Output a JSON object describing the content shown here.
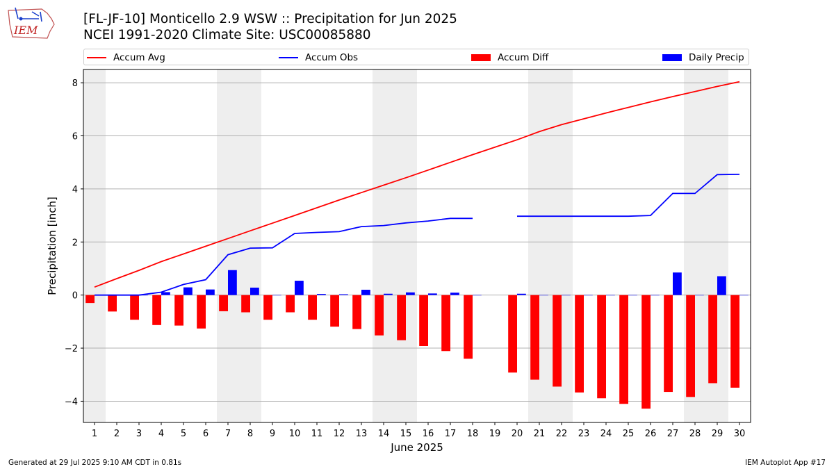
{
  "header": {
    "logo_text": "IEM",
    "title_line1": "[FL-JF-10] Monticello 2.9 WSW :: Precipitation for Jun 2025",
    "title_line2": "NCEI 1991-2020 Climate Site: USC00085880"
  },
  "legend": [
    {
      "label": "Accum Avg",
      "kind": "line",
      "color": "#ff0000"
    },
    {
      "label": "Accum Obs",
      "kind": "line",
      "color": "#0000ff"
    },
    {
      "label": "Accum Diff",
      "kind": "bar",
      "color": "#ff0000"
    },
    {
      "label": "Daily Precip",
      "kind": "bar",
      "color": "#0000ff"
    }
  ],
  "footer": {
    "left": "Generated at 29 Jul 2025 9:10 AM CDT in 0.81s",
    "right": "IEM Autoplot App #17"
  },
  "chart_data": {
    "type": "bar",
    "xlabel": "June 2025",
    "ylabel": "Precipitation [inch]",
    "xlim": [
      0.5,
      30.5
    ],
    "ylim": [
      -4.8,
      8.5
    ],
    "yticks": [
      -4,
      -2,
      0,
      2,
      4,
      6,
      8
    ],
    "x": [
      1,
      2,
      3,
      4,
      5,
      6,
      7,
      8,
      9,
      10,
      11,
      12,
      13,
      14,
      15,
      16,
      17,
      18,
      19,
      20,
      21,
      22,
      23,
      24,
      25,
      26,
      27,
      28,
      29,
      30
    ],
    "weekend_shading": [
      [
        0.5,
        1.5
      ],
      [
        6.5,
        8.5
      ],
      [
        13.5,
        15.5
      ],
      [
        20.5,
        22.5
      ],
      [
        27.5,
        29.5
      ]
    ],
    "grid": "horizontal",
    "legend_position": "top",
    "series": [
      {
        "name": "Accum Avg",
        "type": "line",
        "color": "#ff0000",
        "values": [
          0.3,
          0.62,
          0.93,
          1.26,
          1.55,
          1.84,
          2.13,
          2.42,
          2.71,
          3.0,
          3.29,
          3.58,
          3.86,
          4.14,
          4.42,
          4.71,
          5.0,
          5.29,
          5.57,
          5.85,
          6.16,
          6.42,
          6.64,
          6.86,
          7.07,
          7.28,
          7.48,
          7.67,
          7.86,
          8.04
        ]
      },
      {
        "name": "Accum Obs",
        "type": "line",
        "color": "#0000ff",
        "values": [
          0.0,
          0.0,
          0.0,
          0.11,
          0.4,
          0.58,
          1.52,
          1.77,
          1.78,
          2.32,
          2.36,
          2.39,
          2.58,
          2.62,
          2.72,
          2.79,
          2.89,
          2.89,
          null,
          2.97,
          2.97,
          2.97,
          2.97,
          2.97,
          2.97,
          3.0,
          3.83,
          3.83,
          4.54,
          4.55
        ]
      },
      {
        "name": "Accum Diff",
        "type": "bar",
        "color": "#ff0000",
        "values": [
          -0.3,
          -0.62,
          -0.93,
          -1.13,
          -1.15,
          -1.26,
          -0.61,
          -0.65,
          -0.93,
          -0.65,
          -0.93,
          -1.19,
          -1.28,
          -1.52,
          -1.7,
          -1.92,
          -2.11,
          -2.4,
          null,
          -2.92,
          -3.19,
          -3.45,
          -3.67,
          -3.89,
          -4.1,
          -4.28,
          -3.65,
          -3.84,
          -3.32,
          -3.49
        ]
      },
      {
        "name": "Daily Precip",
        "type": "bar",
        "color": "#0000ff",
        "values": [
          0.0,
          0.0,
          0.0,
          0.11,
          0.29,
          0.21,
          0.94,
          0.28,
          0.0,
          0.54,
          0.04,
          0.03,
          0.2,
          0.05,
          0.1,
          0.06,
          0.09,
          0.0,
          null,
          0.05,
          0.0,
          0.0,
          0.0,
          0.0,
          0.0,
          0.0,
          0.85,
          0.0,
          0.71,
          0.0
        ]
      }
    ]
  }
}
